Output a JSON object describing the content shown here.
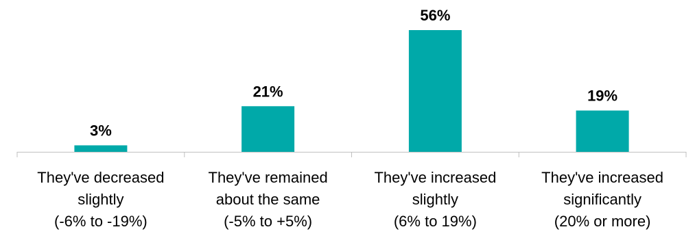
{
  "chart_data": {
    "type": "bar",
    "title": "",
    "xlabel": "",
    "ylabel": "",
    "categories": [
      [
        "They've decreased",
        "slightly",
        "(-6% to -19%)"
      ],
      [
        "They've remained",
        "about the same",
        "(-5% to +5%)"
      ],
      [
        "They've increased",
        "slightly",
        "(6% to 19%)"
      ],
      [
        "They've increased",
        "significantly",
        "(20% or more)"
      ]
    ],
    "values": [
      3,
      21,
      56,
      19
    ],
    "value_labels": [
      "3%",
      "21%",
      "56%",
      "19%"
    ],
    "ylim": [
      0,
      56
    ],
    "grid": false,
    "legend": "none",
    "colors": {
      "bar": "#00A9A9",
      "axis": "#BFBFBF",
      "text": "#000000"
    }
  }
}
